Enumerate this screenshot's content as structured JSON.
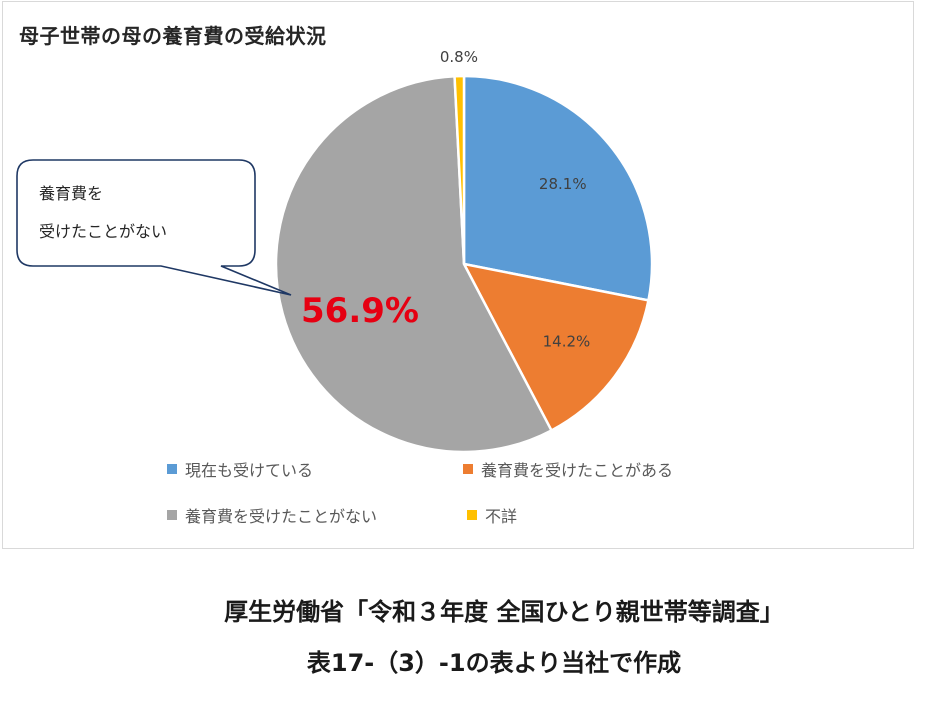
{
  "chart_data": {
    "type": "pie",
    "title": "母子世帯の母の養育費の受給状況",
    "slices": [
      {
        "label": "現在も受けている",
        "value": 28.1,
        "display": "28.1%",
        "color": "#5b9bd5"
      },
      {
        "label": "養育費を受けたことがある",
        "value": 14.2,
        "display": "14.2%",
        "color": "#ed7d31"
      },
      {
        "label": "養育費を受けたことがない",
        "value": 56.9,
        "display": "56.9%",
        "color": "#a5a5a5"
      },
      {
        "label": "不詳",
        "value": 0.8,
        "display": "0.8%",
        "color": "#ffc000"
      }
    ],
    "legend_position": "bottom",
    "callout": {
      "line1": "養育費を",
      "line2": "受けたことがない"
    }
  },
  "source": {
    "line1": "厚生労働省「令和３年度 全国ひとり親世帯等調査」",
    "line2": "表17-（3）-1の表より当社で作成"
  }
}
